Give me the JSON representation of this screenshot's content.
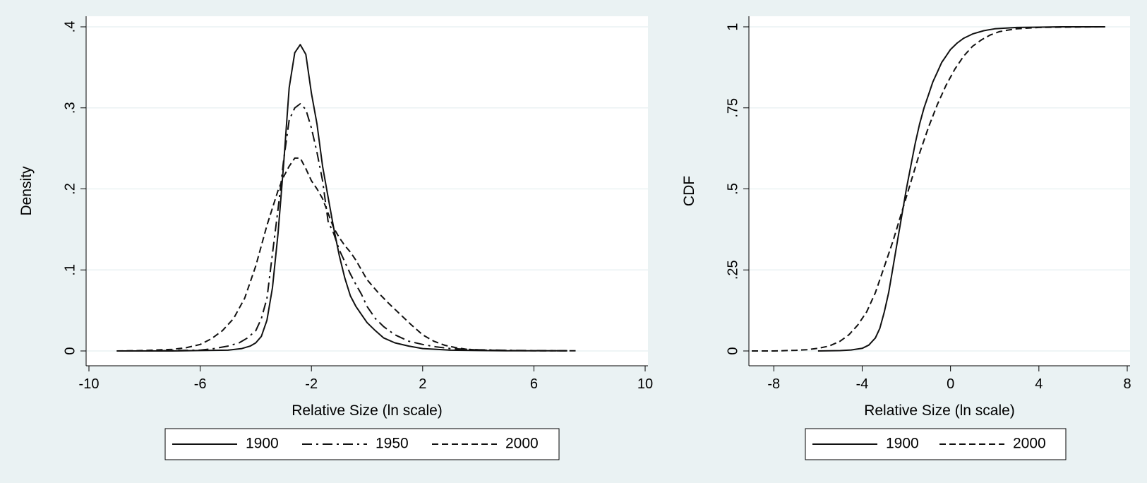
{
  "chart_data": [
    {
      "type": "line",
      "xlabel": "Relative Size (ln scale)",
      "ylabel": "Density",
      "xlim": [
        -10,
        10
      ],
      "ylim": [
        0,
        0.4
      ],
      "xticks": [
        {
          "value": -10,
          "label": "-10"
        },
        {
          "value": -6,
          "label": "-6"
        },
        {
          "value": -2,
          "label": "-2"
        },
        {
          "value": 2,
          "label": "2"
        },
        {
          "value": 6,
          "label": "6"
        },
        {
          "value": 10,
          "label": "10"
        }
      ],
      "yticks": [
        {
          "value": 0,
          "label": "0"
        },
        {
          "value": 0.1,
          "label": ".1"
        },
        {
          "value": 0.2,
          "label": ".2"
        },
        {
          "value": 0.3,
          "label": ".3"
        },
        {
          "value": 0.4,
          "label": ".4"
        }
      ],
      "grid": true,
      "legend_position": "bottom",
      "series": [
        {
          "name": "1900",
          "dash": "solid",
          "x": [
            -9.0,
            -8.0,
            -7.0,
            -6.0,
            -5.0,
            -4.5,
            -4.2,
            -4.0,
            -3.8,
            -3.6,
            -3.4,
            -3.2,
            -3.0,
            -2.8,
            -2.6,
            -2.4,
            -2.2,
            -2.0,
            -1.8,
            -1.6,
            -1.4,
            -1.2,
            -1.0,
            -0.8,
            -0.6,
            -0.4,
            -0.2,
            0.0,
            0.3,
            0.6,
            1.0,
            1.5,
            2.0,
            2.5,
            3.0,
            3.5,
            4.0,
            5.0,
            6.0,
            7.2
          ],
          "y": [
            0.0,
            0.0,
            0.0,
            0.0005,
            0.001,
            0.003,
            0.006,
            0.01,
            0.018,
            0.038,
            0.078,
            0.145,
            0.23,
            0.325,
            0.368,
            0.378,
            0.366,
            0.318,
            0.28,
            0.228,
            0.19,
            0.152,
            0.118,
            0.09,
            0.068,
            0.055,
            0.045,
            0.035,
            0.025,
            0.016,
            0.01,
            0.006,
            0.003,
            0.002,
            0.001,
            0.0008,
            0.0005,
            0.0003,
            0.0002,
            0.0002
          ]
        },
        {
          "name": "1950",
          "dash": "dashdot",
          "x": [
            -9.0,
            -8.0,
            -7.0,
            -6.0,
            -5.5,
            -5.0,
            -4.6,
            -4.3,
            -4.0,
            -3.8,
            -3.6,
            -3.4,
            -3.2,
            -3.0,
            -2.8,
            -2.6,
            -2.4,
            -2.2,
            -2.0,
            -1.8,
            -1.6,
            -1.4,
            -1.2,
            -1.0,
            -0.8,
            -0.6,
            -0.4,
            -0.2,
            0.0,
            0.3,
            0.6,
            1.0,
            1.5,
            2.0,
            2.5,
            3.0,
            4.0,
            5.0,
            6.0,
            7.2
          ],
          "y": [
            0.0,
            0.0,
            0.0005,
            0.001,
            0.003,
            0.006,
            0.01,
            0.016,
            0.025,
            0.04,
            0.065,
            0.12,
            0.175,
            0.235,
            0.285,
            0.3,
            0.305,
            0.298,
            0.275,
            0.245,
            0.21,
            0.16,
            0.145,
            0.125,
            0.11,
            0.095,
            0.082,
            0.07,
            0.055,
            0.04,
            0.03,
            0.02,
            0.012,
            0.008,
            0.005,
            0.003,
            0.0015,
            0.0008,
            0.0004,
            0.0002
          ]
        },
        {
          "name": "2000",
          "dash": "dashed",
          "x": [
            -9.0,
            -8.0,
            -7.0,
            -6.5,
            -6.0,
            -5.6,
            -5.2,
            -4.8,
            -4.4,
            -4.0,
            -3.6,
            -3.2,
            -3.0,
            -2.8,
            -2.6,
            -2.4,
            -2.2,
            -2.0,
            -1.8,
            -1.6,
            -1.4,
            -1.2,
            -1.0,
            -0.8,
            -0.6,
            -0.4,
            -0.2,
            0.0,
            0.4,
            0.8,
            1.2,
            1.6,
            2.0,
            2.4,
            2.8,
            3.2,
            3.6,
            4.0,
            5.0,
            6.0,
            7.5
          ],
          "y": [
            0.0,
            0.0005,
            0.002,
            0.004,
            0.008,
            0.015,
            0.025,
            0.04,
            0.065,
            0.105,
            0.155,
            0.198,
            0.215,
            0.228,
            0.238,
            0.238,
            0.225,
            0.21,
            0.2,
            0.188,
            0.17,
            0.152,
            0.14,
            0.13,
            0.122,
            0.112,
            0.1,
            0.088,
            0.072,
            0.058,
            0.045,
            0.032,
            0.02,
            0.012,
            0.007,
            0.004,
            0.002,
            0.0012,
            0.0006,
            0.0003,
            0.0002
          ]
        }
      ]
    },
    {
      "type": "line",
      "xlabel": "Relative Size (ln scale)",
      "ylabel": "CDF",
      "xlim": [
        -9,
        8
      ],
      "ylim": [
        0,
        1
      ],
      "xticks": [
        {
          "value": -8,
          "label": "-8"
        },
        {
          "value": -4,
          "label": "-4"
        },
        {
          "value": 0,
          "label": "0"
        },
        {
          "value": 4,
          "label": "4"
        },
        {
          "value": 8,
          "label": "8"
        }
      ],
      "yticks": [
        {
          "value": 0,
          "label": "0"
        },
        {
          "value": 0.25,
          "label": ".25"
        },
        {
          "value": 0.5,
          "label": ".5"
        },
        {
          "value": 0.75,
          "label": ".75"
        },
        {
          "value": 1,
          "label": "1"
        }
      ],
      "grid": true,
      "legend_position": "bottom",
      "series": [
        {
          "name": "1900",
          "dash": "solid",
          "x": [
            -6.0,
            -5.0,
            -4.5,
            -4.0,
            -3.7,
            -3.4,
            -3.2,
            -3.0,
            -2.8,
            -2.6,
            -2.4,
            -2.2,
            -2.0,
            -1.8,
            -1.6,
            -1.4,
            -1.2,
            -1.0,
            -0.8,
            -0.6,
            -0.4,
            -0.2,
            0.0,
            0.3,
            0.6,
            1.0,
            1.5,
            2.0,
            3.0,
            4.0,
            5.0,
            7.0
          ],
          "y": [
            0.0,
            0.001,
            0.003,
            0.008,
            0.018,
            0.04,
            0.07,
            0.12,
            0.18,
            0.26,
            0.34,
            0.42,
            0.5,
            0.57,
            0.64,
            0.7,
            0.75,
            0.79,
            0.83,
            0.86,
            0.89,
            0.91,
            0.93,
            0.95,
            0.965,
            0.978,
            0.988,
            0.994,
            0.998,
            0.999,
            1.0,
            1.0
          ]
        },
        {
          "name": "2000",
          "dash": "dashed",
          "x": [
            -9.0,
            -8.0,
            -7.0,
            -6.5,
            -6.0,
            -5.5,
            -5.0,
            -4.6,
            -4.2,
            -3.8,
            -3.4,
            -3.0,
            -2.6,
            -2.2,
            -1.8,
            -1.4,
            -1.0,
            -0.6,
            -0.2,
            0.2,
            0.6,
            1.0,
            1.4,
            1.8,
            2.2,
            2.6,
            3.0,
            4.0,
            5.0,
            7.0
          ],
          "y": [
            0.0,
            0.0,
            0.002,
            0.004,
            0.008,
            0.015,
            0.03,
            0.05,
            0.08,
            0.12,
            0.18,
            0.26,
            0.34,
            0.43,
            0.52,
            0.61,
            0.69,
            0.76,
            0.82,
            0.87,
            0.91,
            0.94,
            0.96,
            0.975,
            0.985,
            0.99,
            0.994,
            0.998,
            0.999,
            1.0
          ]
        }
      ]
    }
  ]
}
